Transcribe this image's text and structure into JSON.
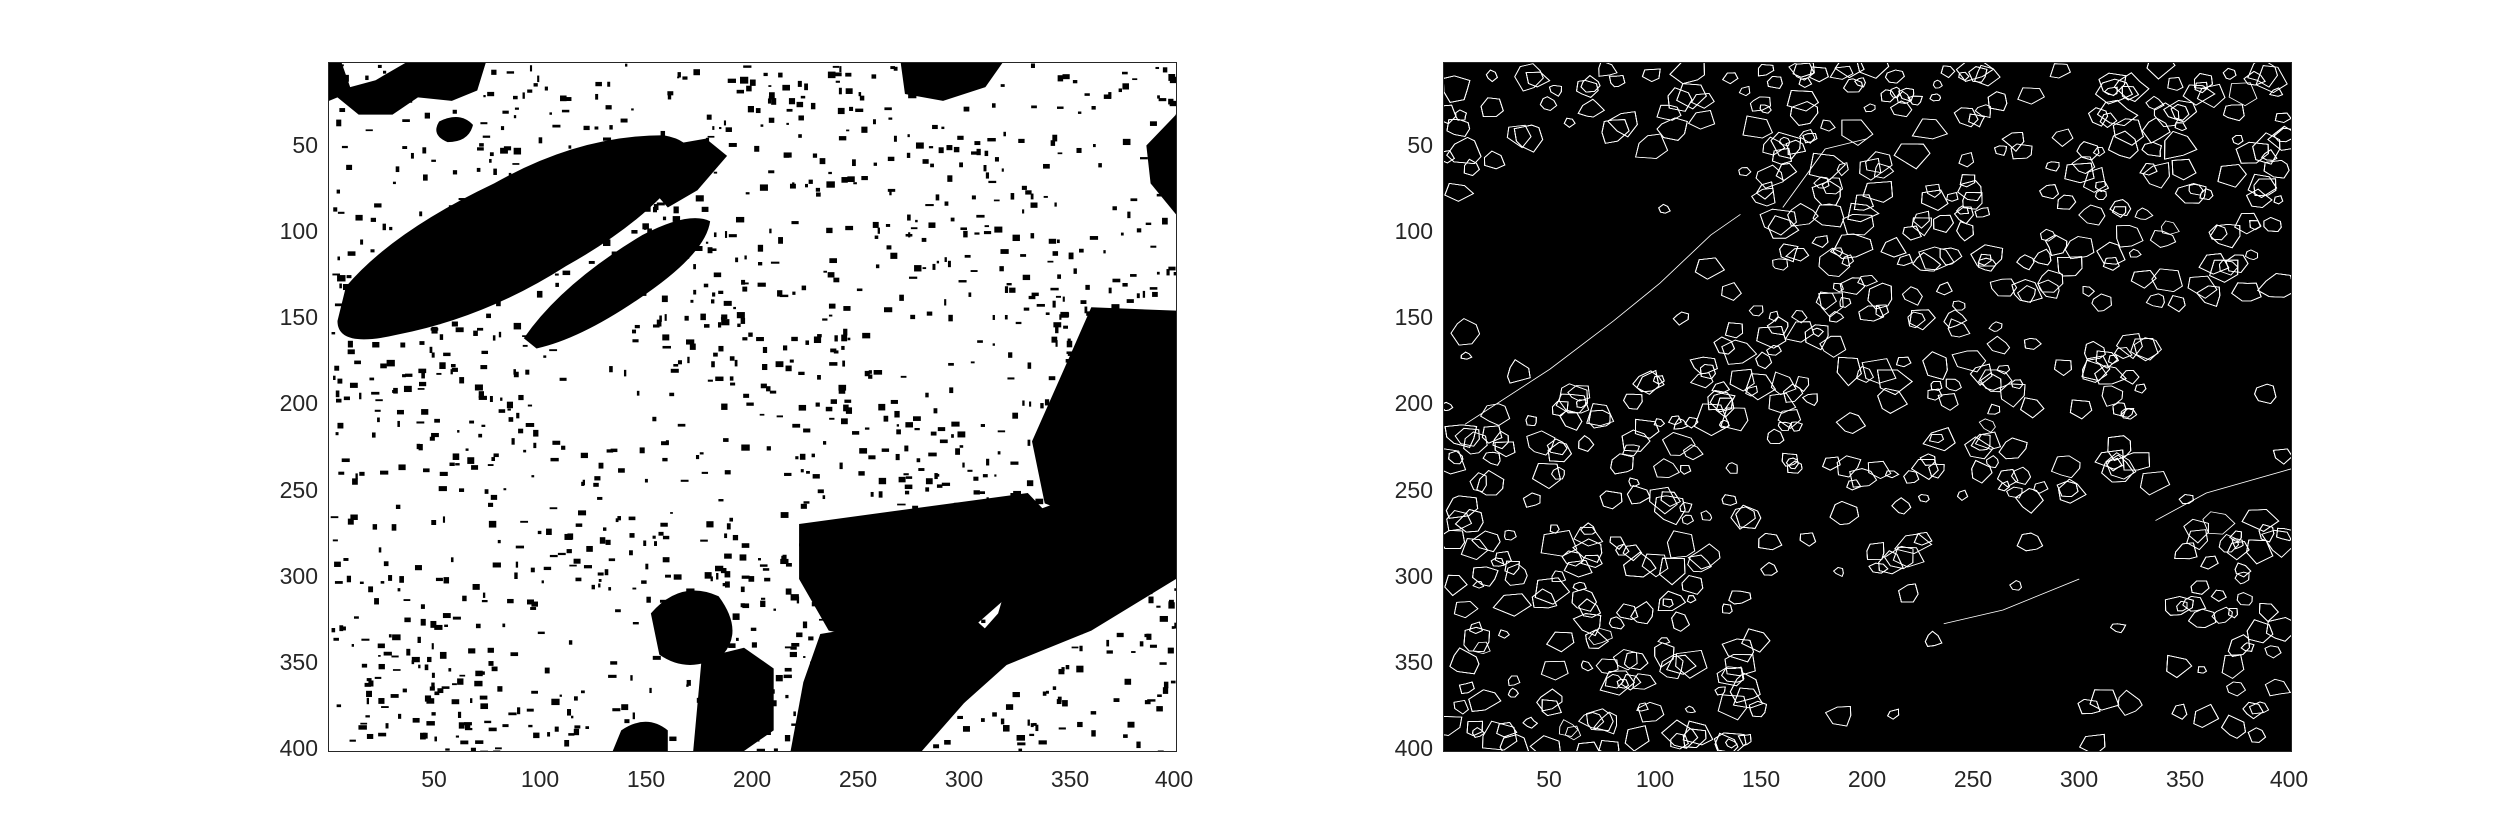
{
  "figure": {
    "panels": [
      {
        "id": "binary",
        "yticks": [
          "50",
          "100",
          "150",
          "200",
          "250",
          "300",
          "350",
          "400"
        ],
        "xticks": [
          "50",
          "100",
          "150",
          "200",
          "250",
          "300",
          "350",
          "400"
        ],
        "background": "#ffffff",
        "foreground": "#000000"
      },
      {
        "id": "edges",
        "yticks": [
          "50",
          "100",
          "150",
          "200",
          "250",
          "300",
          "350",
          "400"
        ],
        "xticks": [
          "50",
          "100",
          "150",
          "200",
          "250",
          "300",
          "350",
          "400"
        ],
        "background": "#000000",
        "foreground": "#ffffff"
      }
    ]
  },
  "colors": {
    "axis": "#262626",
    "black": "#000000",
    "white": "#ffffff"
  }
}
